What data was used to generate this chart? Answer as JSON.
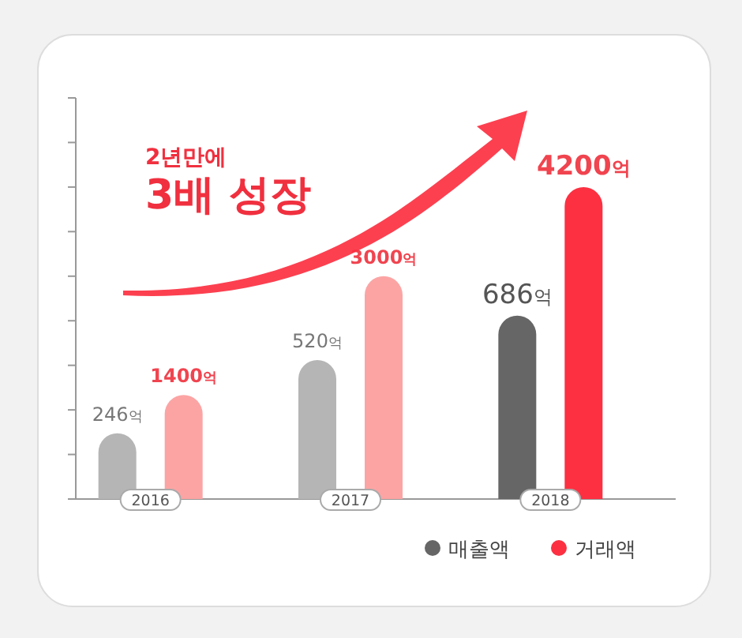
{
  "chart_data": {
    "type": "bar",
    "categories": [
      "2016",
      "2017",
      "2018"
    ],
    "series": [
      {
        "name": "매출액",
        "axis": "y2",
        "color": "#666666",
        "colors": [
          "#b5b5b5",
          "#b5b5b5",
          "#666666"
        ],
        "values": [
          246,
          520,
          686
        ],
        "value_labels": [
          "246억",
          "520억",
          "686억"
        ]
      },
      {
        "name": "거래액",
        "color": "#fc3041",
        "colors": [
          "#fca4a4",
          "#fca4a4",
          "#fc3041"
        ],
        "values": [
          1400,
          3000,
          4200
        ],
        "value_labels": [
          "1400억",
          "3000억",
          "4200억"
        ]
      }
    ],
    "ylim": [
      0,
      5400
    ],
    "yticks": [
      {
        "value": 0,
        "label": null
      },
      {
        "value": 600,
        "label": null
      },
      {
        "value": 1200,
        "label": null
      },
      {
        "value": 1800,
        "label": null
      },
      {
        "value": 2400,
        "label": null
      },
      {
        "value": 3000,
        "label": null
      },
      {
        "value": 3600,
        "label": null
      },
      {
        "value": 4200,
        "label": null
      },
      {
        "value": 4800,
        "label": null
      },
      {
        "value": 5400,
        "label": null
      }
    ],
    "y2lim": [
      0,
      1500
    ],
    "tick_labels": "x",
    "legend": "bottom right",
    "annotations": [
      "2년만에",
      "3배 성장"
    ]
  }
}
